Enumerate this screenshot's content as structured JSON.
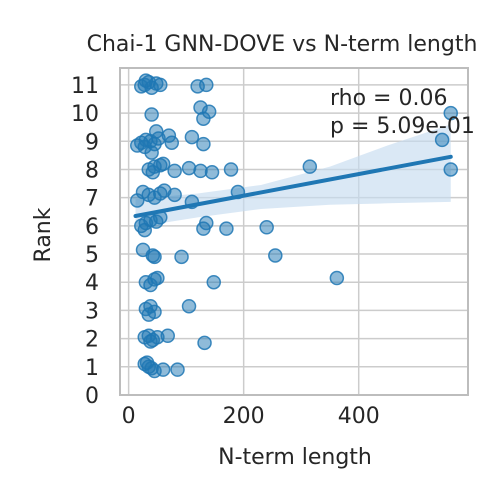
{
  "chart_data": {
    "type": "scatter",
    "title": "Chai-1 GNN-DOVE vs N-term length",
    "xlabel": "N-term length",
    "ylabel": "Rank",
    "xlim": [
      -15,
      590
    ],
    "ylim": [
      0,
      11.6
    ],
    "x_ticks": [
      0,
      200,
      400
    ],
    "y_ticks": [
      0,
      1,
      2,
      3,
      4,
      5,
      6,
      7,
      8,
      9,
      10,
      11
    ],
    "grid": true,
    "annotation": {
      "lines": [
        "rho = 0.06",
        "p = 5.09e-01"
      ]
    },
    "colors": {
      "points": "#1f77b4",
      "line": "#1f77b4",
      "band": "#c6dbef",
      "grid": "#cccccc",
      "axes": "#bdbdbd",
      "text": "#262626"
    },
    "regression": {
      "x_start": 12,
      "x_end": 560,
      "y_start": 6.35,
      "y_end": 8.45,
      "ci_upper": [
        [
          12,
          6.95
        ],
        [
          120,
          7.15
        ],
        [
          230,
          7.45
        ],
        [
          350,
          8.1
        ],
        [
          450,
          8.85
        ],
        [
          560,
          9.6
        ]
      ],
      "ci_lower": [
        [
          12,
          5.95
        ],
        [
          120,
          6.3
        ],
        [
          230,
          6.6
        ],
        [
          350,
          6.75
        ],
        [
          450,
          6.8
        ],
        [
          560,
          6.85
        ]
      ]
    },
    "points": [
      {
        "x": 28,
        "y": 11.0
      },
      {
        "x": 35,
        "y": 11.1
      },
      {
        "x": 48,
        "y": 11.05
      },
      {
        "x": 22,
        "y": 10.95
      },
      {
        "x": 40,
        "y": 10.9
      },
      {
        "x": 55,
        "y": 11.0
      },
      {
        "x": 30,
        "y": 11.15
      },
      {
        "x": 120,
        "y": 10.95
      },
      {
        "x": 135,
        "y": 11.0
      },
      {
        "x": 125,
        "y": 10.2
      },
      {
        "x": 140,
        "y": 10.05
      },
      {
        "x": 130,
        "y": 9.8
      },
      {
        "x": 40,
        "y": 9.95
      },
      {
        "x": 560,
        "y": 10.0
      },
      {
        "x": 545,
        "y": 9.05
      },
      {
        "x": 22,
        "y": 8.95
      },
      {
        "x": 30,
        "y": 9.05
      },
      {
        "x": 38,
        "y": 9.0
      },
      {
        "x": 45,
        "y": 8.9
      },
      {
        "x": 15,
        "y": 8.85
      },
      {
        "x": 28,
        "y": 8.8
      },
      {
        "x": 52,
        "y": 9.1
      },
      {
        "x": 70,
        "y": 9.2
      },
      {
        "x": 75,
        "y": 8.95
      },
      {
        "x": 110,
        "y": 9.15
      },
      {
        "x": 130,
        "y": 8.9
      },
      {
        "x": 40,
        "y": 8.6
      },
      {
        "x": 48,
        "y": 9.35
      },
      {
        "x": 35,
        "y": 8.0
      },
      {
        "x": 45,
        "y": 8.1
      },
      {
        "x": 55,
        "y": 8.15
      },
      {
        "x": 60,
        "y": 8.2
      },
      {
        "x": 42,
        "y": 7.9
      },
      {
        "x": 80,
        "y": 7.95
      },
      {
        "x": 105,
        "y": 8.05
      },
      {
        "x": 125,
        "y": 7.95
      },
      {
        "x": 145,
        "y": 7.9
      },
      {
        "x": 178,
        "y": 8.0
      },
      {
        "x": 315,
        "y": 8.1
      },
      {
        "x": 560,
        "y": 8.0
      },
      {
        "x": 25,
        "y": 7.2
      },
      {
        "x": 35,
        "y": 7.1
      },
      {
        "x": 45,
        "y": 7.0
      },
      {
        "x": 55,
        "y": 7.15
      },
      {
        "x": 80,
        "y": 7.1
      },
      {
        "x": 110,
        "y": 6.85
      },
      {
        "x": 190,
        "y": 7.2
      },
      {
        "x": 15,
        "y": 6.9
      },
      {
        "x": 62,
        "y": 7.25
      },
      {
        "x": 22,
        "y": 6.0
      },
      {
        "x": 30,
        "y": 6.1
      },
      {
        "x": 38,
        "y": 6.2
      },
      {
        "x": 48,
        "y": 6.15
      },
      {
        "x": 55,
        "y": 6.3
      },
      {
        "x": 28,
        "y": 5.85
      },
      {
        "x": 130,
        "y": 5.9
      },
      {
        "x": 135,
        "y": 6.1
      },
      {
        "x": 170,
        "y": 5.9
      },
      {
        "x": 240,
        "y": 5.95
      },
      {
        "x": 25,
        "y": 5.15
      },
      {
        "x": 42,
        "y": 4.95
      },
      {
        "x": 45,
        "y": 4.9
      },
      {
        "x": 92,
        "y": 4.9
      },
      {
        "x": 255,
        "y": 4.95
      },
      {
        "x": 30,
        "y": 4.0
      },
      {
        "x": 38,
        "y": 3.9
      },
      {
        "x": 45,
        "y": 4.1
      },
      {
        "x": 50,
        "y": 4.15
      },
      {
        "x": 148,
        "y": 4.0
      },
      {
        "x": 362,
        "y": 4.15
      },
      {
        "x": 30,
        "y": 3.05
      },
      {
        "x": 38,
        "y": 3.15
      },
      {
        "x": 45,
        "y": 2.95
      },
      {
        "x": 35,
        "y": 2.85
      },
      {
        "x": 105,
        "y": 3.15
      },
      {
        "x": 28,
        "y": 2.05
      },
      {
        "x": 35,
        "y": 2.1
      },
      {
        "x": 42,
        "y": 1.95
      },
      {
        "x": 50,
        "y": 2.05
      },
      {
        "x": 38,
        "y": 1.9
      },
      {
        "x": 68,
        "y": 2.1
      },
      {
        "x": 132,
        "y": 1.85
      },
      {
        "x": 28,
        "y": 1.1
      },
      {
        "x": 35,
        "y": 1.0
      },
      {
        "x": 40,
        "y": 0.95
      },
      {
        "x": 32,
        "y": 1.15
      },
      {
        "x": 45,
        "y": 0.85
      },
      {
        "x": 60,
        "y": 0.9
      },
      {
        "x": 85,
        "y": 0.9
      }
    ]
  }
}
